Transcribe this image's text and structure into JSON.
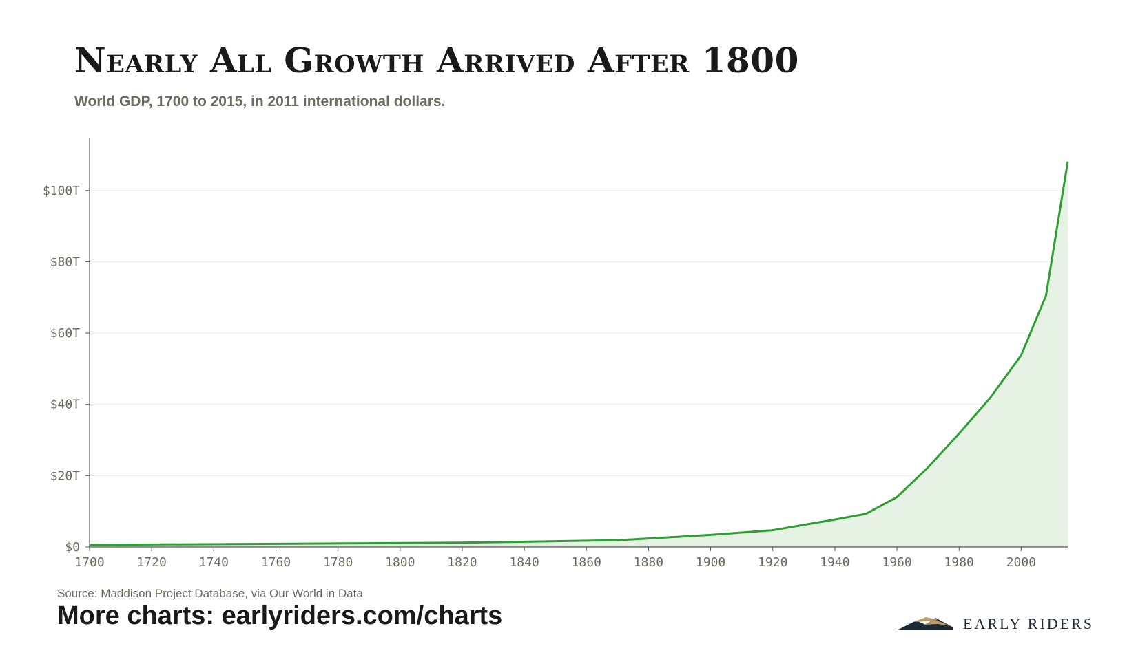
{
  "header": {
    "title": "Nearly All Growth Arrived After 1800",
    "subtitle": "World GDP, 1700 to 2015, in 2011 international dollars."
  },
  "footer": {
    "source": "Source: Maddison Project Database, via Our World in Data",
    "more_charts": "More charts: earlyriders.com/charts",
    "brand_name": "EARLY RIDERS"
  },
  "colors": {
    "line": "#2e9e35",
    "area": "#e6f2e3",
    "axis": "#555555",
    "grid": "#ececec",
    "text_muted": "#6b6b5f",
    "brand_navy": "#1e2a36",
    "brand_gold": "#b89a6a"
  },
  "icons": {
    "brand_logo": "mountain-logo-icon"
  },
  "chart_data": {
    "type": "area",
    "title": "Nearly All Growth Arrived After 1800",
    "subtitle": "World GDP, 1700 to 2015, in 2011 international dollars.",
    "xlabel": "",
    "ylabel": "",
    "xlim": [
      1700,
      2015
    ],
    "ylim": [
      0,
      110
    ],
    "x_ticks": [
      1700,
      1720,
      1740,
      1760,
      1780,
      1800,
      1820,
      1840,
      1860,
      1880,
      1900,
      1920,
      1940,
      1960,
      1980,
      2000
    ],
    "x_tick_labels": [
      "1700",
      "1720",
      "1740",
      "1760",
      "1780",
      "1800",
      "1820",
      "1840",
      "1860",
      "1880",
      "1900",
      "1920",
      "1940",
      "1960",
      "1980",
      "2000"
    ],
    "y_ticks": [
      0,
      20,
      40,
      60,
      80,
      100
    ],
    "y_tick_labels": [
      "$0",
      "$20T",
      "$40T",
      "$60T",
      "$80T",
      "$100T"
    ],
    "grid": true,
    "legend": false,
    "series": [
      {
        "x": [
          1700,
          1820,
          1870,
          1900,
          1920,
          1940,
          1950,
          1960,
          1970,
          1980,
          1990,
          2000,
          2008,
          2015
        ],
        "y": [
          0.6,
          1.2,
          1.9,
          3.4,
          4.7,
          7.7,
          9.3,
          14.0,
          22.3,
          31.8,
          41.8,
          53.8,
          70.5,
          108.1
        ]
      }
    ]
  }
}
